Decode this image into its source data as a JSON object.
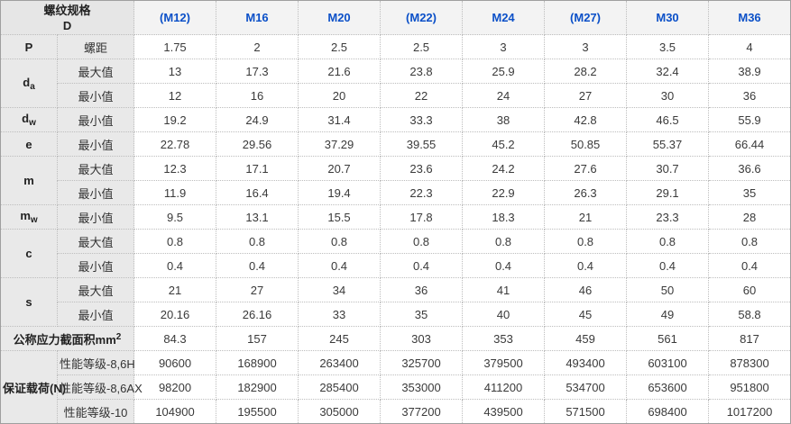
{
  "colors": {
    "header_text_blue": "#0b50c8",
    "label_bg_gray": "#e9e9e9",
    "header_bg_gray": "#f3f3f3",
    "body_text": "#3a3a3a",
    "border_dotted": "#bdbdbd",
    "border_outer": "#9f9f9f"
  },
  "table": {
    "header": {
      "title_line1": "螺纹规格",
      "title_line2": "D",
      "columns": [
        "(M12)",
        "M16",
        "M20",
        "(M22)",
        "M24",
        "(M27)",
        "M30",
        "M36"
      ]
    },
    "rows": [
      {
        "sym": "P",
        "sub": "",
        "spec": "螺距",
        "values": [
          "1.75",
          "2",
          "2.5",
          "2.5",
          "3",
          "3",
          "3.5",
          "4"
        ]
      },
      {
        "sym": "d",
        "sub": "a",
        "spec": "最大值",
        "values": [
          "13",
          "17.3",
          "21.6",
          "23.8",
          "25.9",
          "28.2",
          "32.4",
          "38.9"
        ]
      },
      {
        "spec": "最小值",
        "values": [
          "12",
          "16",
          "20",
          "22",
          "24",
          "27",
          "30",
          "36"
        ]
      },
      {
        "sym": "d",
        "sub": "w",
        "spec": "最小值",
        "values": [
          "19.2",
          "24.9",
          "31.4",
          "33.3",
          "38",
          "42.8",
          "46.5",
          "55.9"
        ]
      },
      {
        "sym": "e",
        "sub": "",
        "spec": "最小值",
        "values": [
          "22.78",
          "29.56",
          "37.29",
          "39.55",
          "45.2",
          "50.85",
          "55.37",
          "66.44"
        ]
      },
      {
        "sym": "m",
        "sub": "",
        "spec": "最大值",
        "values": [
          "12.3",
          "17.1",
          "20.7",
          "23.6",
          "24.2",
          "27.6",
          "30.7",
          "36.6"
        ]
      },
      {
        "spec": "最小值",
        "values": [
          "11.9",
          "16.4",
          "19.4",
          "22.3",
          "22.9",
          "26.3",
          "29.1",
          "35"
        ]
      },
      {
        "sym": "m",
        "sub": "w",
        "spec": "最小值",
        "values": [
          "9.5",
          "13.1",
          "15.5",
          "17.8",
          "18.3",
          "21",
          "23.3",
          "28"
        ]
      },
      {
        "sym": "c",
        "sub": "",
        "spec": "最大值",
        "values": [
          "0.8",
          "0.8",
          "0.8",
          "0.8",
          "0.8",
          "0.8",
          "0.8",
          "0.8"
        ]
      },
      {
        "spec": "最小值",
        "values": [
          "0.4",
          "0.4",
          "0.4",
          "0.4",
          "0.4",
          "0.4",
          "0.4",
          "0.4"
        ]
      },
      {
        "sym": "s",
        "sub": "",
        "spec": "最大值",
        "values": [
          "21",
          "27",
          "34",
          "36",
          "41",
          "46",
          "50",
          "60"
        ]
      },
      {
        "spec": "最小值",
        "values": [
          "20.16",
          "26.16",
          "33",
          "35",
          "40",
          "45",
          "49",
          "58.8"
        ]
      },
      {
        "label_main": "公称应力截面积mm",
        "label_sup": "2",
        "values": [
          "84.3",
          "157",
          "245",
          "303",
          "353",
          "459",
          "561",
          "817"
        ]
      },
      {
        "group": "保证载荷(N)",
        "spec": "性能等级-8,6H",
        "values": [
          "90600",
          "168900",
          "263400",
          "325700",
          "379500",
          "493400",
          "603100",
          "878300"
        ]
      },
      {
        "spec": "性能等级-8,6AX",
        "values": [
          "98200",
          "182900",
          "285400",
          "353000",
          "411200",
          "534700",
          "653600",
          "951800"
        ]
      },
      {
        "spec": "性能等级-10",
        "values": [
          "104900",
          "195500",
          "305000",
          "377200",
          "439500",
          "571500",
          "698400",
          "1017200"
        ]
      }
    ]
  }
}
